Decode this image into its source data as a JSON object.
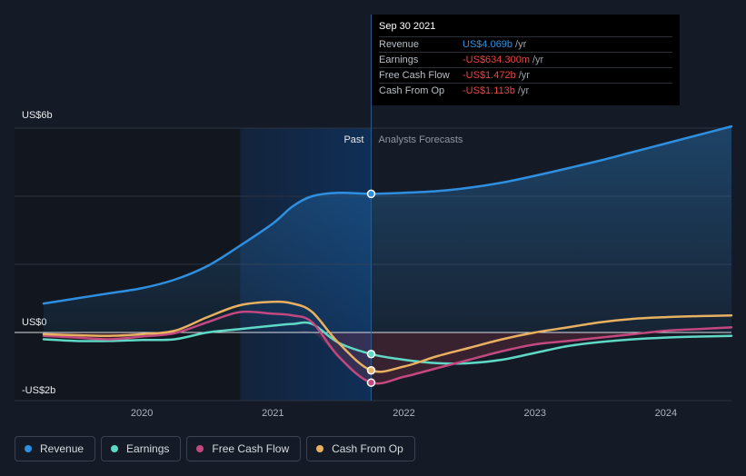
{
  "chart_data": {
    "type": "line",
    "title": "",
    "xlabel": "",
    "ylabel": "",
    "y_tick_labels": [
      "US$6b",
      "US$0",
      "-US$2b"
    ],
    "x_tick_labels": [
      "2020",
      "2021",
      "2022",
      "2023",
      "2024"
    ],
    "x_ticks": [
      2020,
      2021,
      2022,
      2023,
      2024
    ],
    "xlim": [
      2019.25,
      2024.5
    ],
    "ylim": [
      -2.0,
      6.0
    ],
    "past_label": "Past",
    "forecast_label": "Analysts Forecasts",
    "divider_x": 2021.75,
    "series": [
      {
        "name": "Revenue",
        "color": "#2e8fe0",
        "x": [
          2019.25,
          2019.5,
          2019.75,
          2020.0,
          2020.25,
          2020.5,
          2020.75,
          2021.0,
          2021.15,
          2021.3,
          2021.5,
          2021.75,
          2022.0,
          2022.25,
          2022.5,
          2022.75,
          2023.0,
          2023.25,
          2023.5,
          2023.75,
          2024.0,
          2024.25,
          2024.5
        ],
        "values": [
          0.85,
          1.0,
          1.15,
          1.3,
          1.55,
          1.95,
          2.55,
          3.2,
          3.7,
          4.0,
          4.1,
          4.069,
          4.1,
          4.15,
          4.25,
          4.4,
          4.6,
          4.82,
          5.05,
          5.3,
          5.55,
          5.8,
          6.05
        ]
      },
      {
        "name": "Earnings",
        "color": "#5fd8c6",
        "x": [
          2019.25,
          2019.5,
          2019.75,
          2020.0,
          2020.25,
          2020.5,
          2020.75,
          2021.0,
          2021.15,
          2021.3,
          2021.5,
          2021.75,
          2022.0,
          2022.25,
          2022.5,
          2022.75,
          2023.0,
          2023.25,
          2023.5,
          2023.75,
          2024.0,
          2024.25,
          2024.5
        ],
        "values": [
          -0.2,
          -0.25,
          -0.25,
          -0.22,
          -0.2,
          0.0,
          0.1,
          0.2,
          0.25,
          0.25,
          -0.3,
          -0.634,
          -0.8,
          -0.9,
          -0.9,
          -0.8,
          -0.6,
          -0.4,
          -0.28,
          -0.2,
          -0.15,
          -0.12,
          -0.1
        ]
      },
      {
        "name": "Free Cash Flow",
        "color": "#c2487f",
        "x": [
          2019.25,
          2019.5,
          2019.75,
          2020.0,
          2020.25,
          2020.5,
          2020.75,
          2021.0,
          2021.15,
          2021.3,
          2021.5,
          2021.75,
          2022.0,
          2022.25,
          2022.5,
          2022.75,
          2023.0,
          2023.25,
          2023.5,
          2023.75,
          2024.0,
          2024.25,
          2024.5
        ],
        "values": [
          -0.1,
          -0.15,
          -0.2,
          -0.12,
          -0.02,
          0.3,
          0.6,
          0.55,
          0.5,
          0.3,
          -0.7,
          -1.472,
          -1.3,
          -1.05,
          -0.8,
          -0.55,
          -0.35,
          -0.25,
          -0.15,
          -0.05,
          0.05,
          0.1,
          0.15
        ]
      },
      {
        "name": "Cash From Op",
        "color": "#e8b061",
        "x": [
          2019.25,
          2019.5,
          2019.75,
          2020.0,
          2020.25,
          2020.5,
          2020.75,
          2021.0,
          2021.15,
          2021.3,
          2021.5,
          2021.75,
          2022.0,
          2022.25,
          2022.5,
          2022.75,
          2023.0,
          2023.25,
          2023.5,
          2023.75,
          2024.0,
          2024.25,
          2024.5
        ],
        "values": [
          -0.05,
          -0.08,
          -0.1,
          -0.05,
          0.05,
          0.45,
          0.8,
          0.9,
          0.85,
          0.6,
          -0.3,
          -1.113,
          -1.0,
          -0.7,
          -0.45,
          -0.2,
          0.0,
          0.15,
          0.3,
          0.4,
          0.45,
          0.48,
          0.5
        ]
      }
    ]
  },
  "tooltip": {
    "date": "Sep 30 2021",
    "rows": [
      {
        "label": "Revenue",
        "value": "US$4.069b",
        "unit": "/yr",
        "color": "#2e8fe0"
      },
      {
        "label": "Earnings",
        "value": "-US$634.300m",
        "unit": "/yr",
        "color": "#e84545"
      },
      {
        "label": "Free Cash Flow",
        "value": "-US$1.472b",
        "unit": "/yr",
        "color": "#e84545"
      },
      {
        "label": "Cash From Op",
        "value": "-US$1.113b",
        "unit": "/yr",
        "color": "#e84545"
      }
    ]
  },
  "legend": [
    {
      "label": "Revenue",
      "color": "#2e8fe0"
    },
    {
      "label": "Earnings",
      "color": "#5fd8c6"
    },
    {
      "label": "Free Cash Flow",
      "color": "#c2487f"
    },
    {
      "label": "Cash From Op",
      "color": "#e8b061"
    }
  ]
}
